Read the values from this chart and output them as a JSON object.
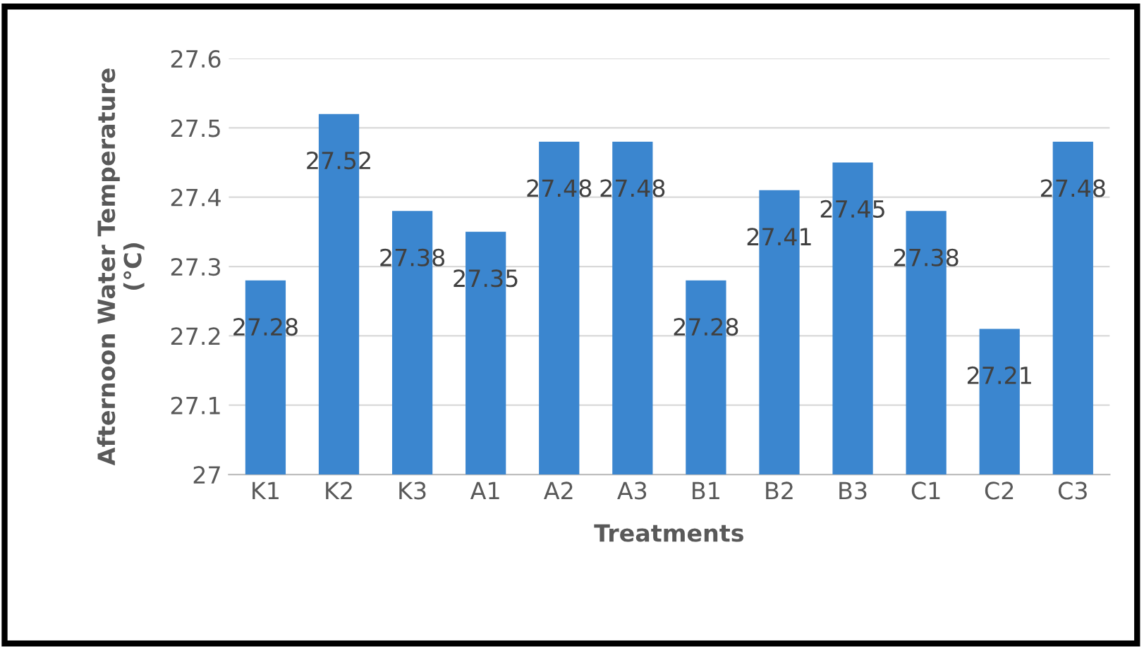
{
  "chart_data": {
    "type": "bar",
    "xlabel": "Treatments",
    "ylabel": "Afternoon Water Temperature\n(°C)",
    "categories": [
      "K1",
      "K2",
      "K3",
      "A1",
      "A2",
      "A3",
      "B1",
      "B2",
      "B3",
      "C1",
      "C2",
      "C3"
    ],
    "values": [
      27.28,
      27.52,
      27.38,
      27.35,
      27.48,
      27.48,
      27.28,
      27.41,
      27.45,
      27.38,
      27.21,
      27.48
    ],
    "color": "#3b86cf",
    "ylim": [
      27,
      27.6
    ],
    "yticks": [
      27,
      27.1,
      27.2,
      27.3,
      27.4,
      27.5,
      27.6
    ],
    "grid": "y",
    "data_labels": true
  }
}
